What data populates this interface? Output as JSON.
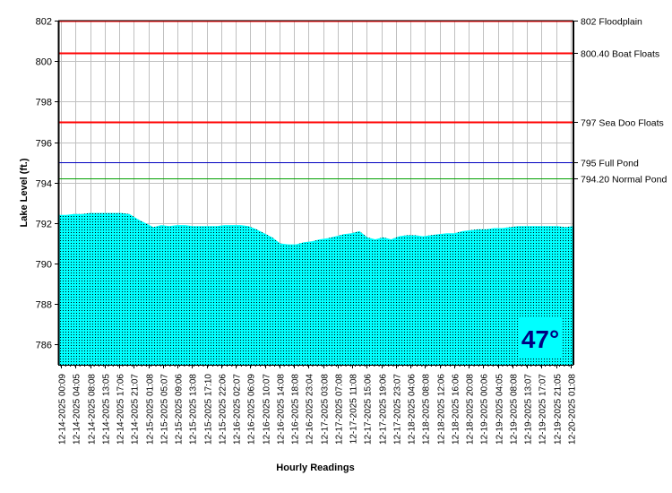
{
  "chart_data": {
    "type": "area",
    "title": "",
    "xlabel": "Hourly Readings",
    "ylabel": "Lake Level (ft.)",
    "ylim": [
      785,
      802
    ],
    "yticks": [
      786,
      788,
      790,
      792,
      794,
      796,
      798,
      800,
      802
    ],
    "grid": true,
    "x_tick_labels": [
      "12-14-2025 00:09",
      "12-14-2025 04:05",
      "12-14-2025 08:08",
      "12-14-2025 13:05",
      "12-14-2025 17:06",
      "12-14-2025 21:07",
      "12-15-2025 01:08",
      "12-15-2025 05:07",
      "12-15-2025 09:06",
      "12-15-2025 13:08",
      "12-15-2025 17:10",
      "12-15-2025 22:06",
      "12-16-2025 02:07",
      "12-16-2025 06:09",
      "12-16-2025 10:07",
      "12-16-2025 14:08",
      "12-16-2025 18:08",
      "12-16-2025 23:04",
      "12-17-2025 03:08",
      "12-17-2025 07:08",
      "12-17-2025 11:08",
      "12-17-2025 15:06",
      "12-17-2025 19:06",
      "12-17-2025 23:07",
      "12-18-2025 04:06",
      "12-18-2025 08:08",
      "12-18-2025 12:06",
      "12-18-2025 16:06",
      "12-18-2025 20:08",
      "12-19-2025 00:06",
      "12-19-2025 04:05",
      "12-19-2025 08:08",
      "12-19-2025 13:07",
      "12-19-2025 17:07",
      "12-19-2025 21:05",
      "12-20-2025 01:08"
    ],
    "series": [
      {
        "name": "Lake Level",
        "color": "#00ffff",
        "values": [
          792.4,
          792.4,
          792.45,
          792.45,
          792.5,
          792.5,
          792.5,
          792.5,
          792.5,
          792.45,
          792.2,
          792.0,
          791.8,
          791.9,
          791.85,
          791.9,
          791.9,
          791.85,
          791.85,
          791.85,
          791.85,
          791.9,
          791.9,
          791.9,
          791.85,
          791.7,
          791.5,
          791.3,
          791.0,
          790.95,
          790.95,
          791.05,
          791.1,
          791.2,
          791.25,
          791.35,
          791.45,
          791.5,
          791.6,
          791.3,
          791.2,
          791.3,
          791.2,
          791.35,
          791.4,
          791.4,
          791.35,
          791.4,
          791.45,
          791.5,
          791.5,
          791.6,
          791.65,
          791.7,
          791.7,
          791.75,
          791.75,
          791.8,
          791.85,
          791.85,
          791.85,
          791.85,
          791.85,
          791.85,
          791.8,
          791.85
        ]
      }
    ],
    "reference_lines": [
      {
        "value": 802,
        "label": "802 Floodplain",
        "color": "#ff0000"
      },
      {
        "value": 800.4,
        "label": "800.40 Boat Floats",
        "color": "#ff0000"
      },
      {
        "value": 797,
        "label": "797 Sea Doo Floats",
        "color": "#ff0000"
      },
      {
        "value": 795,
        "label": "795 Full Pond",
        "color": "#0000c0"
      },
      {
        "value": 794.2,
        "label": "794.20 Normal Pond",
        "color": "#00a000"
      }
    ],
    "annotation": {
      "label": "47°",
      "color": "#000080"
    }
  }
}
